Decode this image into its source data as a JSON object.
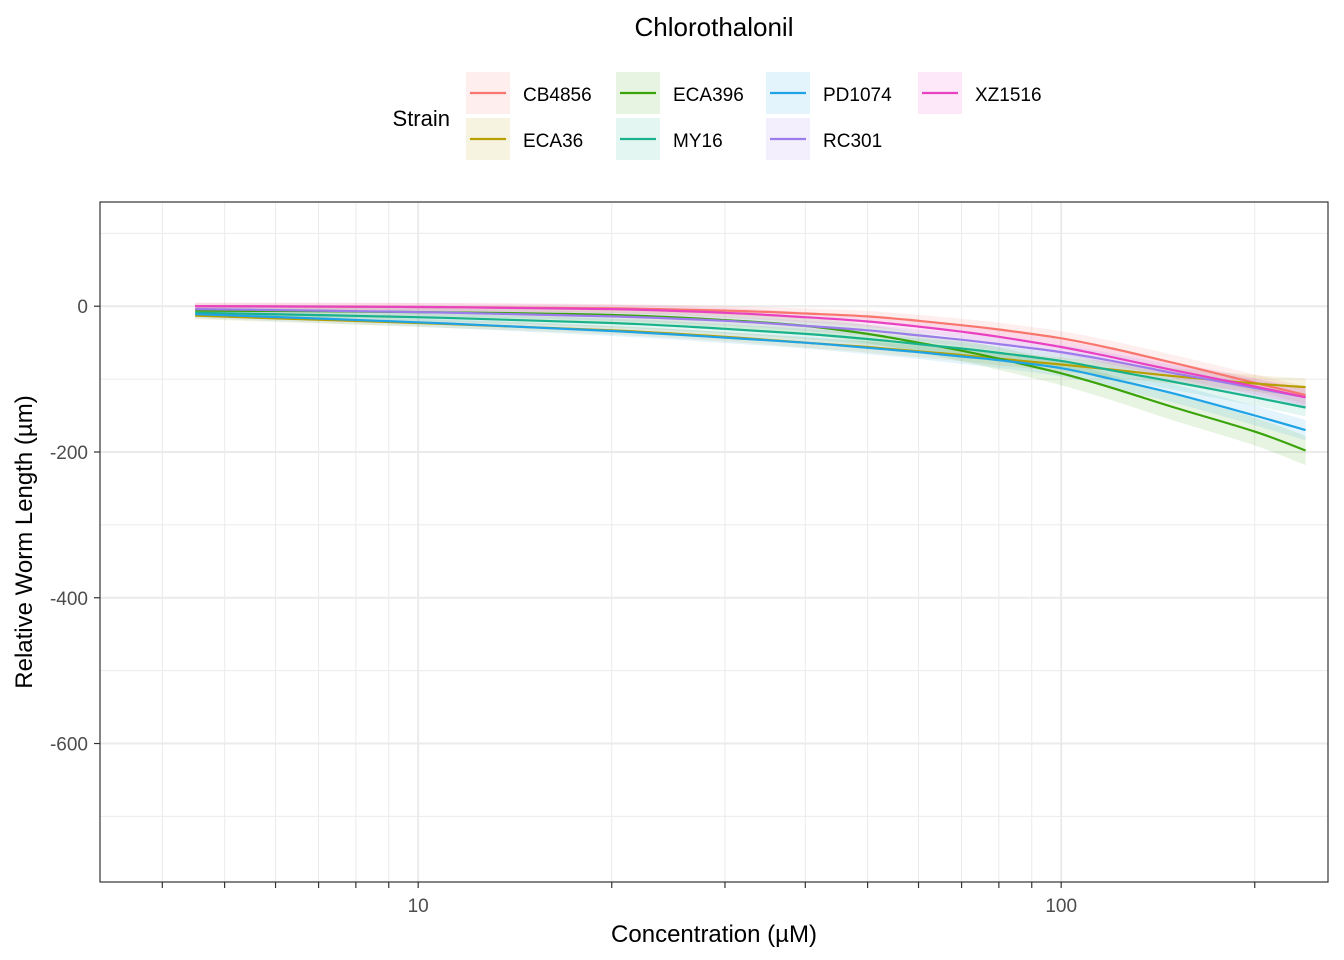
{
  "chart_data": {
    "type": "line",
    "title": "Chlorothalonil",
    "xlabel": "Concentration (µM)",
    "ylabel": "Relative Worm Length (µm)",
    "xscale": "log10",
    "xlim": [
      3.2,
      260
    ],
    "ylim": [
      -790,
      143
    ],
    "x_ticks": [
      10,
      100
    ],
    "x_tick_labels": [
      "10",
      "100"
    ],
    "y_ticks": [
      0,
      -200,
      -400,
      -600
    ],
    "y_tick_labels": [
      "0",
      "-200",
      "-400",
      "-600"
    ],
    "grid": true,
    "legend_title": "Strain",
    "legend_position": "top",
    "x": [
      4.5,
      10,
      20,
      30,
      40,
      50,
      60,
      70,
      80,
      100,
      120,
      150,
      200,
      240
    ],
    "series": [
      {
        "name": "CB4856",
        "color": "#F8766D",
        "values": [
          0,
          -1,
          -3,
          -6,
          -10,
          -14,
          -20,
          -26,
          -32,
          -44,
          -58,
          -78,
          -105,
          -122
        ],
        "band": 12
      },
      {
        "name": "ECA36",
        "color": "#B79F00",
        "values": [
          -13,
          -23,
          -33,
          -42,
          -50,
          -56,
          -62,
          -67,
          -72,
          -80,
          -87,
          -96,
          -106,
          -111
        ],
        "band": 12
      },
      {
        "name": "ECA396",
        "color": "#3BA30A",
        "values": [
          -6,
          -8,
          -12,
          -19,
          -27,
          -38,
          -50,
          -61,
          -72,
          -92,
          -112,
          -139,
          -172,
          -198
        ],
        "band": 20
      },
      {
        "name": "MY16",
        "color": "#19B28C",
        "values": [
          -9,
          -15,
          -23,
          -31,
          -38,
          -45,
          -52,
          -58,
          -64,
          -75,
          -88,
          -104,
          -125,
          -139
        ],
        "band": 12
      },
      {
        "name": "PD1074",
        "color": "#1FA3E6",
        "values": [
          -11,
          -22,
          -34,
          -43,
          -50,
          -57,
          -63,
          -69,
          -74,
          -85,
          -100,
          -120,
          -150,
          -170
        ],
        "band": 14
      },
      {
        "name": "RC301",
        "color": "#9B7CEB",
        "values": [
          -4,
          -8,
          -14,
          -20,
          -27,
          -33,
          -40,
          -46,
          -52,
          -63,
          -75,
          -92,
          -112,
          -125
        ],
        "band": 12
      },
      {
        "name": "XZ1516",
        "color": "#E842C2",
        "values": [
          0,
          -1,
          -4,
          -9,
          -15,
          -21,
          -28,
          -35,
          -42,
          -56,
          -70,
          -88,
          -110,
          -125
        ],
        "band": 12
      }
    ]
  }
}
